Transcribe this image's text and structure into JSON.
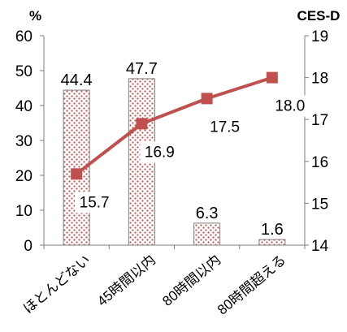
{
  "chart_data": {
    "type": "bar",
    "categories": [
      "ほとんどない",
      "45時間以内",
      "80時間以内",
      "80時間超える"
    ],
    "series": [
      {
        "values": [
          44.4,
          47.7,
          6.3,
          1.6
        ],
        "axis": "left",
        "kind": "bar",
        "labels": [
          "44.4",
          "47.7",
          "6.3",
          "1.6"
        ]
      },
      {
        "values": [
          15.7,
          16.9,
          17.5,
          18.0
        ],
        "axis": "right",
        "kind": "line",
        "labels": [
          "15.7",
          "16.9",
          "17.5",
          "18.0"
        ]
      }
    ],
    "left_axis": {
      "unit": "%",
      "ylim": [
        0,
        60
      ],
      "ticks": [
        "0",
        "10",
        "20",
        "30",
        "40",
        "50",
        "60"
      ]
    },
    "right_axis": {
      "unit": "CES-D",
      "ylim": [
        14,
        19
      ],
      "ticks": [
        "14",
        "15",
        "16",
        "17",
        "18",
        "19"
      ]
    },
    "grid": false,
    "legend": "none",
    "colors": {
      "bar_dots": "#c0504d",
      "bar_border": "#7f7f7f",
      "line": "#c0504d",
      "axis": "#7f7f7f"
    }
  }
}
